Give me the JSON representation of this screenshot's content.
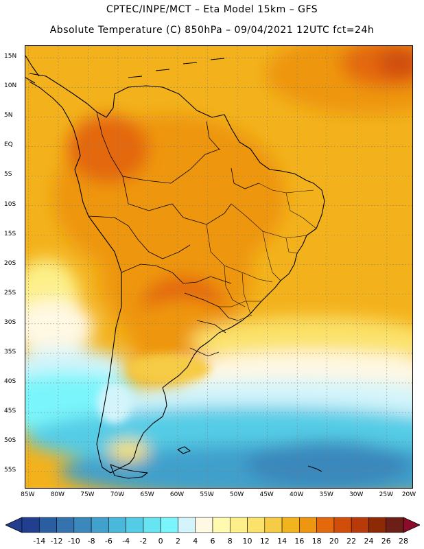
{
  "header": {
    "line1": "CPTEC/INPE/MCT –  Eta Model 15km – GFS",
    "line2": "Absolute Temperature (C) 850hPa – 09/04/2021 12UTC fct=24h"
  },
  "map": {
    "lat_labels": [
      "15N",
      "10N",
      "5N",
      "EQ",
      "5S",
      "10S",
      "15S",
      "20S",
      "25S",
      "30S",
      "35S",
      "40S",
      "45S",
      "50S",
      "55S"
    ],
    "lat_values": [
      15,
      10,
      5,
      0,
      -5,
      -10,
      -15,
      -20,
      -25,
      -30,
      -35,
      -40,
      -45,
      -50,
      -55
    ],
    "lon_labels": [
      "85W",
      "80W",
      "75W",
      "70W",
      "65W",
      "60W",
      "55W",
      "50W",
      "45W",
      "40W",
      "35W",
      "30W",
      "25W",
      "20W"
    ],
    "lon_values": [
      -85,
      -80,
      -75,
      -70,
      -65,
      -60,
      -55,
      -50,
      -45,
      -40,
      -35,
      -30,
      -25,
      -20
    ],
    "lon_range": [
      -85.5,
      -20.5
    ],
    "lat_range": [
      -58,
      17
    ],
    "grid": "dotted"
  },
  "colorbar": {
    "labels": [
      "-14",
      "-12",
      "-10",
      "-8",
      "-6",
      "-4",
      "-2",
      "0",
      "2",
      "4",
      "6",
      "8",
      "10",
      "12",
      "14",
      "16",
      "18",
      "20",
      "22",
      "24",
      "26",
      "28"
    ],
    "colors": [
      "#223f8f",
      "#2b5ea0",
      "#3473ae",
      "#3a88bc",
      "#41a0cc",
      "#4ab8da",
      "#55cce6",
      "#66e4f2",
      "#7af5fb",
      "#d3f4fb",
      "#fff8e3",
      "#fffab0",
      "#fdf08a",
      "#fbe26b",
      "#f6cb45",
      "#f2b41e",
      "#ee9610",
      "#e4680c",
      "#d04e0a",
      "#b83a08",
      "#8c2a06",
      "#6b1f16"
    ]
  }
}
